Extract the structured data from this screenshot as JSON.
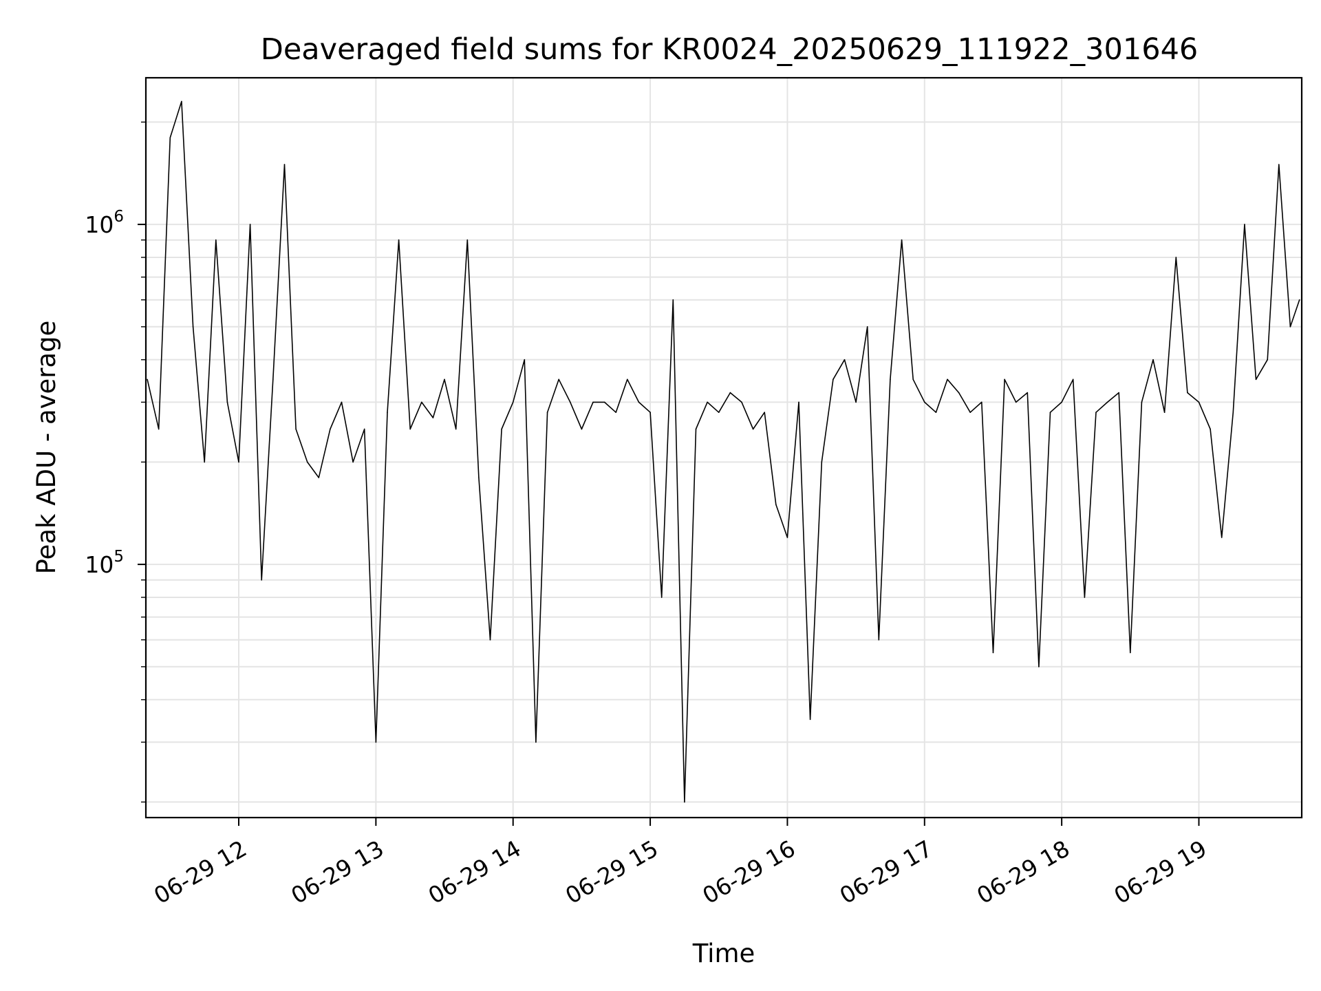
{
  "chart_data": {
    "type": "line",
    "title": "Deaveraged field sums for KR0024_20250629_111922_301646",
    "xlabel": "Time",
    "ylabel": "Peak ADU - average",
    "y_scale": "log",
    "ylim": [
      18000,
      2700000
    ],
    "xlim": [
      "06-29 11:19:22",
      "06-29 19:45:00"
    ],
    "grid": true,
    "line_color": "#000000",
    "x_ticks": [
      "06-29 12",
      "06-29 13",
      "06-29 14",
      "06-29 15",
      "06-29 16",
      "06-29 17",
      "06-29 18",
      "06-29 19"
    ],
    "y_ticks": [
      {
        "base": "10",
        "exp": "5",
        "value": 100000
      },
      {
        "base": "10",
        "exp": "6",
        "value": 1000000
      }
    ],
    "series": [
      {
        "x": [
          "06-29 11:20",
          "06-29 11:25",
          "06-29 11:30",
          "06-29 11:35",
          "06-29 11:40",
          "06-29 11:45",
          "06-29 11:50",
          "06-29 11:55",
          "06-29 12:00",
          "06-29 12:05",
          "06-29 12:10",
          "06-29 12:15",
          "06-29 12:20",
          "06-29 12:25",
          "06-29 12:30",
          "06-29 12:35",
          "06-29 12:40",
          "06-29 12:45",
          "06-29 12:50",
          "06-29 12:55",
          "06-29 13:00",
          "06-29 13:05",
          "06-29 13:10",
          "06-29 13:15",
          "06-29 13:20",
          "06-29 13:25",
          "06-29 13:30",
          "06-29 13:35",
          "06-29 13:40",
          "06-29 13:45",
          "06-29 13:50",
          "06-29 13:55",
          "06-29 14:00",
          "06-29 14:05",
          "06-29 14:10",
          "06-29 14:15",
          "06-29 14:20",
          "06-29 14:25",
          "06-29 14:30",
          "06-29 14:35",
          "06-29 14:40",
          "06-29 14:45",
          "06-29 14:50",
          "06-29 14:55",
          "06-29 15:00",
          "06-29 15:05",
          "06-29 15:10",
          "06-29 15:15",
          "06-29 15:20",
          "06-29 15:25",
          "06-29 15:30",
          "06-29 15:35",
          "06-29 15:40",
          "06-29 15:45",
          "06-29 15:50",
          "06-29 15:55",
          "06-29 16:00",
          "06-29 16:05",
          "06-29 16:10",
          "06-29 16:15",
          "06-29 16:20",
          "06-29 16:25",
          "06-29 16:30",
          "06-29 16:35",
          "06-29 16:40",
          "06-29 16:45",
          "06-29 16:50",
          "06-29 16:55",
          "06-29 17:00",
          "06-29 17:05",
          "06-29 17:10",
          "06-29 17:15",
          "06-29 17:20",
          "06-29 17:25",
          "06-29 17:30",
          "06-29 17:35",
          "06-29 17:40",
          "06-29 17:45",
          "06-29 17:50",
          "06-29 17:55",
          "06-29 18:00",
          "06-29 18:05",
          "06-29 18:10",
          "06-29 18:15",
          "06-29 18:20",
          "06-29 18:25",
          "06-29 18:30",
          "06-29 18:35",
          "06-29 18:40",
          "06-29 18:45",
          "06-29 18:50",
          "06-29 18:55",
          "06-29 19:00",
          "06-29 19:05",
          "06-29 19:10",
          "06-29 19:15",
          "06-29 19:20",
          "06-29 19:25",
          "06-29 19:30",
          "06-29 19:35",
          "06-29 19:40",
          "06-29 19:44"
        ],
        "y": [
          350000,
          250000,
          1800000,
          2300000,
          500000,
          200000,
          900000,
          300000,
          200000,
          1000000,
          90000,
          350000,
          1500000,
          250000,
          200000,
          180000,
          250000,
          300000,
          200000,
          250000,
          30000,
          280000,
          900000,
          250000,
          300000,
          270000,
          350000,
          250000,
          900000,
          180000,
          60000,
          250000,
          300000,
          400000,
          30000,
          280000,
          350000,
          300000,
          250000,
          300000,
          300000,
          280000,
          350000,
          300000,
          280000,
          80000,
          600000,
          20000,
          250000,
          300000,
          280000,
          320000,
          300000,
          250000,
          280000,
          150000,
          120000,
          300000,
          35000,
          200000,
          350000,
          400000,
          300000,
          500000,
          60000,
          350000,
          900000,
          350000,
          300000,
          280000,
          350000,
          320000,
          280000,
          300000,
          55000,
          350000,
          300000,
          320000,
          50000,
          280000,
          300000,
          350000,
          80000,
          280000,
          300000,
          320000,
          55000,
          300000,
          400000,
          280000,
          800000,
          320000,
          300000,
          250000,
          120000,
          280000,
          1000000,
          350000,
          400000,
          1500000,
          500000,
          600000
        ]
      }
    ]
  }
}
